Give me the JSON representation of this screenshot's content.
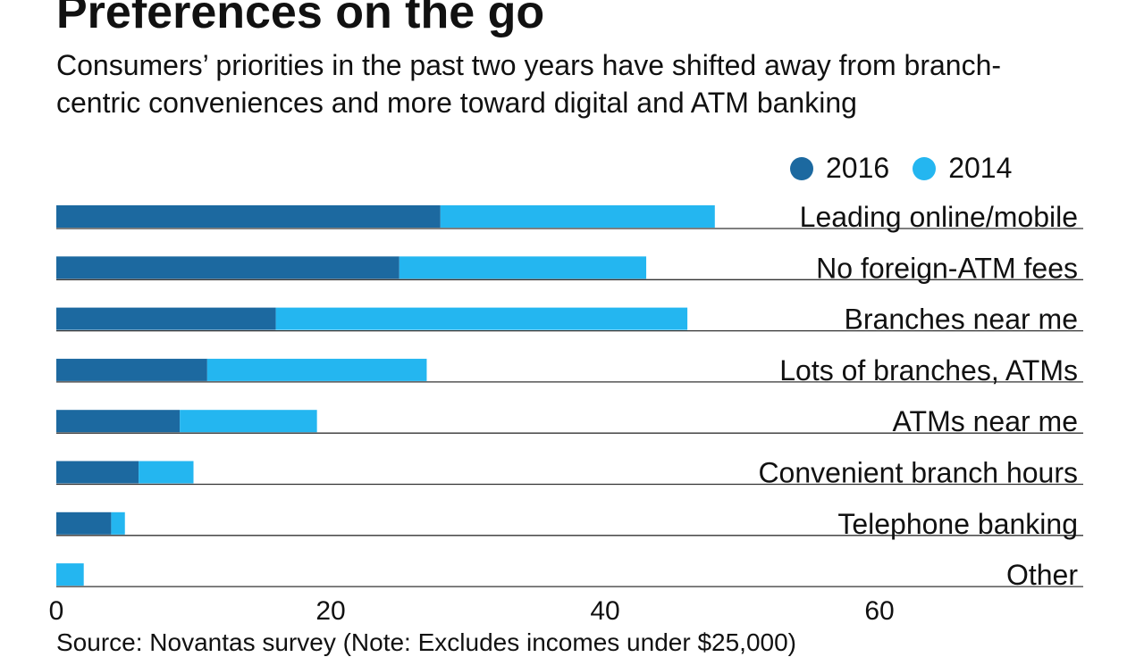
{
  "chart_data": {
    "type": "bar",
    "orientation": "horizontal",
    "stacked": true,
    "title": "Preferences on the go",
    "subtitle": "Consumers’ priorities in the past two years have shifted away from branch-centric conveniences and more toward digital and ATM banking",
    "categories": [
      "Leading online/mobile",
      "No foreign-ATM fees",
      "Branches near me",
      "Lots of branches, ATMs",
      "ATMs near me",
      "Convenient branch hours",
      "Telephone banking",
      "Other"
    ],
    "series": [
      {
        "name": "2016",
        "color": "#1c69a0",
        "values": [
          28,
          25,
          16,
          11,
          9,
          6,
          4,
          0
        ]
      },
      {
        "name": "2014",
        "color": "#24b6f0",
        "values": [
          20,
          18,
          30,
          16,
          10,
          4,
          1,
          2
        ]
      }
    ],
    "xlim": [
      0,
      75
    ],
    "xticks": [
      "0",
      "20",
      "40",
      "60"
    ],
    "xtick_values": [
      0,
      20,
      40,
      60
    ],
    "legend": "top-right",
    "grid": false,
    "footer": "Source: Novantas survey (Note: Excludes incomes under $25,000)"
  }
}
